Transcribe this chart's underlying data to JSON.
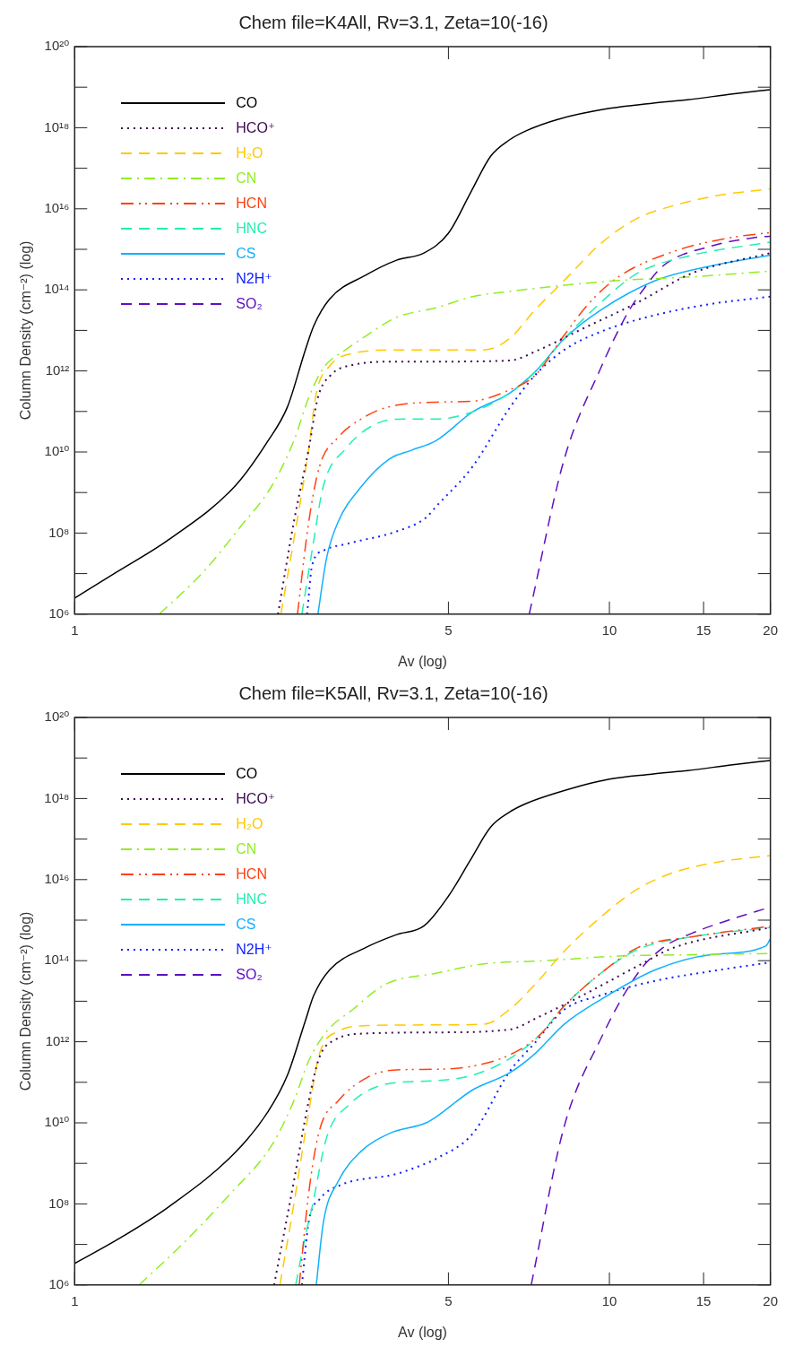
{
  "chart_data": [
    {
      "type": "line",
      "title": "Chem file=K4All, Rv=3.1, Zeta=10(-16)",
      "xlabel": "Av (log)",
      "ylabel": "Column Density (cm⁻²) (log)",
      "log": "xy",
      "legend": "top left",
      "xlim": [
        1,
        20
      ],
      "xticks": [
        1,
        5,
        10,
        15,
        20
      ],
      "ylim": [
        1000000.0,
        1e+20
      ],
      "yticks": [
        {
          "value": 1000000.0,
          "label": "10⁶"
        },
        {
          "value": 10000000.0,
          "label": null
        },
        {
          "value": 100000000.0,
          "label": "10⁸"
        },
        {
          "value": 1000000000.0,
          "label": null
        },
        {
          "value": 10000000000.0,
          "label": "10¹⁰"
        },
        {
          "value": 100000000000.0,
          "label": null
        },
        {
          "value": 1000000000000.0,
          "label": "10¹²"
        },
        {
          "value": 10000000000000.0,
          "label": null
        },
        {
          "value": 100000000000000.0,
          "label": "10¹⁴"
        },
        {
          "value": 1000000000000000.0,
          "label": null
        },
        {
          "value": 1e+16,
          "label": "10¹⁶"
        },
        {
          "value": 1e+17,
          "label": null
        },
        {
          "value": 1e+18,
          "label": "10¹⁸"
        },
        {
          "value": 1e+19,
          "label": null
        },
        {
          "value": 1e+20,
          "label": "10²⁰"
        }
      ],
      "series": [
        {
          "name": "CO",
          "color": "#000000",
          "line_style": "solid",
          "x": [
            1,
            1.2,
            1.5,
            2,
            2.3,
            2.5,
            2.7,
            2.8,
            3,
            3.5,
            4,
            4.5,
            5,
            5.5,
            6,
            6.5,
            7,
            8,
            10,
            12,
            14,
            17,
            20
          ],
          "values": [
            2500000.0,
            11000000.0,
            69000000.0,
            1500000000.0,
            19000000000.0,
            130000000000.0,
            3300000000000.0,
            13000000000000.0,
            60000000000000.0,
            230000000000000.0,
            540000000000000.0,
            810000000000000.0,
            2500000000000000.0,
            2.5e+16,
            2e+17,
            5e+17,
            8.5e+17,
            1.6e+18,
            3e+18,
            4e+18,
            4.9e+18,
            6.8e+18,
            8.7e+18
          ]
        },
        {
          "name": "HCO⁺",
          "color": "#3c0a50",
          "line_style": "dotted",
          "x": [
            2.4,
            2.57,
            2.74,
            2.85,
            3.01,
            3.31,
            4.0,
            4.74,
            6.5,
            7.38,
            8.91,
            11.3,
            14.3,
            20
          ],
          "values": [
            1000000.0,
            190000000.0,
            12000000000.0,
            220000000000.0,
            780000000000.0,
            1400000000000.0,
            1700000000000.0,
            1700000000000.0,
            1800000000000.0,
            3300000000000.0,
            11000000000000.0,
            49000000000000.0,
            260000000000000.0,
            810000000000000.0
          ]
        },
        {
          "name": "H₂O",
          "color": "#ffc800",
          "line_style": "dashed",
          "x": [
            2.43,
            2.57,
            2.74,
            2.83,
            3.01,
            3.31,
            4.0,
            4.74,
            5.82,
            6.5,
            7.26,
            8.23,
            9.64,
            11.3,
            13.2,
            16.2,
            20
          ],
          "values": [
            1000000.0,
            69000000.0,
            12000000000.0,
            280000000000.0,
            1400000000000.0,
            2700000000000.0,
            3300000000000.0,
            3300000000000.0,
            3300000000000.0,
            6200000000000.0,
            32000000000000.0,
            170000000000000.0,
            1400000000000000.0,
            5900000000000000.0,
            1.2e+16,
            2.2e+16,
            3.1e+16
          ]
        },
        {
          "name": "CN",
          "color": "#90ee20",
          "line_style": "dashdot",
          "x": [
            1.44,
            1.74,
            2.03,
            2.34,
            2.57,
            2.74,
            2.92,
            3.21,
            3.52,
            4.0,
            4.74,
            5.55,
            6.5,
            8.23,
            10.4,
            14.3,
            20
          ],
          "values": [
            1000000.0,
            11000000.0,
            130000000.0,
            1500000000.0,
            19000000000.0,
            220000000000.0,
            1200000000000.0,
            3300000000000.0,
            7600000000000.0,
            21000000000000.0,
            36000000000000.0,
            68000000000000.0,
            91000000000000.0,
            130000000000000.0,
            170000000000000.0,
            210000000000000.0,
            290000000000000.0
          ]
        },
        {
          "name": "HCN",
          "color": "#ff4010",
          "line_style": "dashdotdot",
          "x": [
            2.61,
            2.74,
            2.87,
            3.11,
            3.52,
            3.87,
            4.74,
            5.55,
            6.5,
            7.26,
            8.23,
            9.19,
            10.4,
            13.2,
            16.7,
            20
          ],
          "values": [
            1000000.0,
            190000000.0,
            4400000000.0,
            23000000000.0,
            79000000000.0,
            130000000000.0,
            170000000000.0,
            180000000000.0,
            340000000000.0,
            780000000000.0,
            7600000000000.0,
            49000000000000.0,
            210000000000000.0,
            890000000000000.0,
            1900000000000000.0,
            2600000000000000.0
          ]
        },
        {
          "name": "HNC",
          "color": "#20f0b0",
          "line_style": "dashed",
          "x": [
            2.66,
            2.78,
            2.92,
            3.21,
            3.64,
            4.13,
            4.74,
            5.55,
            6.5,
            7.26,
            8.23,
            9.64,
            11.3,
            14.3,
            20
          ],
          "values": [
            1000000.0,
            37000000.0,
            1500000000.0,
            12000000000.0,
            48000000000.0,
            65000000000.0,
            65000000000.0,
            98000000000.0,
            280000000000.0,
            950000000000.0,
            6200000000000.0,
            49000000000000.0,
            260000000000000.0,
            720000000000000.0,
            1500000000000000.0
          ]
        },
        {
          "name": "CS",
          "color": "#10b0ff",
          "line_style": "solid",
          "x": [
            2.85,
            2.96,
            3.11,
            3.42,
            3.87,
            4.26,
            4.74,
            5.55,
            6.5,
            7.26,
            8.23,
            9.64,
            12.2,
            15.5,
            20
          ],
          "values": [
            1000000.0,
            25000000.0,
            190000000.0,
            1300000000.0,
            6600000000.0,
            11000000000.0,
            19000000000.0,
            98000000000.0,
            280000000000.0,
            950000000000.0,
            6200000000000.0,
            32000000000000.0,
            170000000000000.0,
            390000000000000.0,
            720000000000000.0
          ]
        },
        {
          "name": "N2H⁺",
          "color": "#1020ff",
          "line_style": "dotted",
          "x": [
            2.72,
            2.78,
            2.92,
            3.26,
            4.0,
            4.54,
            4.74,
            5.55,
            6.5,
            7.26,
            8.23,
            9.64,
            12.2,
            15.5,
            20
          ],
          "values": [
            1000000.0,
            16000000.0,
            37000000.0,
            56000000.0,
            110000000.0,
            240000000.0,
            450000000.0,
            4400000000.0,
            120000000000.0,
            780000000000.0,
            3300000000000.0,
            9300000000000.0,
            24000000000000.0,
            45000000000000.0,
            68000000000000.0
          ]
        },
        {
          "name": "SO₂",
          "color": "#6010c0",
          "line_style": "dashed",
          "x": [
            7.08,
            8.23,
            9.64,
            10.8,
            11.5,
            12.6,
            15.5,
            19.0,
            20
          ],
          "values": [
            1000000.0,
            6600000000.0,
            1200000000000.0,
            26000000000000.0,
            91000000000000.0,
            390000000000000.0,
            1200000000000000.0,
            2000000000000000.0,
            2100000000000000.0
          ]
        }
      ]
    },
    {
      "type": "line",
      "title": "Chem file=K5All, Rv=3.1, Zeta=10(-16)",
      "xlabel": "Av (log)",
      "ylabel": "Column Density (cm⁻²) (log)",
      "log": "xy",
      "legend": "top left",
      "xlim": [
        1,
        20
      ],
      "xticks": [
        1,
        5,
        10,
        15,
        20
      ],
      "ylim": [
        1000000.0,
        1e+20
      ],
      "yticks": [
        {
          "value": 1000000.0,
          "label": "10⁶"
        },
        {
          "value": 10000000.0,
          "label": null
        },
        {
          "value": 100000000.0,
          "label": "10⁸"
        },
        {
          "value": 1000000000.0,
          "label": null
        },
        {
          "value": 10000000000.0,
          "label": "10¹⁰"
        },
        {
          "value": 100000000000.0,
          "label": null
        },
        {
          "value": 1000000000000.0,
          "label": "10¹²"
        },
        {
          "value": 10000000000000.0,
          "label": null
        },
        {
          "value": 100000000000000.0,
          "label": "10¹⁴"
        },
        {
          "value": 1000000000000000.0,
          "label": null
        },
        {
          "value": 1e+16,
          "label": "10¹⁶"
        },
        {
          "value": 1e+17,
          "label": null
        },
        {
          "value": 1e+18,
          "label": "10¹⁸"
        },
        {
          "value": 1e+19,
          "label": null
        },
        {
          "value": 1e+20,
          "label": "10²⁰"
        }
      ],
      "series": [
        {
          "name": "CO",
          "color": "#000000",
          "line_style": "solid",
          "x": [
            1,
            1.2,
            1.5,
            2,
            2.3,
            2.5,
            2.7,
            2.8,
            3,
            3.5,
            4,
            4.5,
            5,
            5.5,
            6,
            6.5,
            7,
            8,
            10,
            12,
            14,
            17,
            20
          ],
          "values": [
            3400000.0,
            13000000.0,
            85000000.0,
            1900000000.0,
            19000000000.0,
            150000000000.0,
            3300000000000.0,
            14000000000000.0,
            60000000000000.0,
            210000000000000.0,
            440000000000000.0,
            720000000000000.0,
            3900000000000000.0,
            3.1e+16,
            2e+17,
            4.6e+17,
            7.6e+17,
            1.4e+18,
            3e+18,
            4e+18,
            4.9e+18,
            6.8e+18,
            8.7e+18
          ]
        },
        {
          "name": "HCO⁺",
          "color": "#3c0a50",
          "line_style": "dotted",
          "x": [
            2.36,
            2.57,
            2.74,
            2.87,
            3.06,
            3.52,
            4.74,
            6.5,
            7.38,
            8.91,
            11.3,
            13.2,
            20
          ],
          "values": [
            1000000.0,
            360000000.0,
            35000000000.0,
            420000000000.0,
            1100000000000.0,
            1600000000000.0,
            1700000000000.0,
            2000000000000.0,
            4100000000000.0,
            14000000000000.0,
            74000000000000.0,
            210000000000000.0,
            660000000000000.0
          ]
        },
        {
          "name": "H₂O",
          "color": "#ffc800",
          "line_style": "dashed",
          "x": [
            2.42,
            2.57,
            2.74,
            2.87,
            3.11,
            3.52,
            4.74,
            5.82,
            6.5,
            7.26,
            8.23,
            9.64,
            11.3,
            13.2,
            16.2,
            20
          ],
          "values": [
            1000000.0,
            100000000.0,
            19000000000.0,
            510000000000.0,
            1800000000000.0,
            2500000000000.0,
            2600000000000.0,
            2700000000000.0,
            6200000000000.0,
            26000000000000.0,
            170000000000000.0,
            1200000000000000.0,
            5900000000000000.0,
            1.5e+16,
            2.8e+16,
            3.9e+16
          ]
        },
        {
          "name": "CN",
          "color": "#90ee20",
          "line_style": "dashdot",
          "x": [
            1.32,
            1.6,
            1.94,
            2.34,
            2.57,
            2.74,
            2.96,
            3.31,
            3.81,
            4.74,
            5.82,
            7.6,
            10.4,
            14.3,
            20
          ],
          "values": [
            1000000.0,
            11000000.0,
            160000000.0,
            2900000000.0,
            35000000000.0,
            340000000000.0,
            1800000000000.0,
            6200000000000.0,
            26000000000000.0,
            49000000000000.0,
            83000000000000.0,
            100000000000000.0,
            130000000000000.0,
            140000000000000.0,
            150000000000000.0
          ]
        },
        {
          "name": "HCN",
          "color": "#ff4010",
          "line_style": "dashdotdot",
          "x": [
            2.63,
            2.74,
            2.87,
            3.11,
            3.52,
            3.94,
            4.74,
            5.55,
            6.5,
            7.38,
            8.23,
            9.64,
            11.3,
            14.3,
            20
          ],
          "values": [
            1000000.0,
            190000000.0,
            6600000000.0,
            35000000000.0,
            130000000000.0,
            200000000000.0,
            210000000000.0,
            250000000000.0,
            470000000000.0,
            1400000000000.0,
            7600000000000.0,
            49000000000000.0,
            210000000000000.0,
            390000000000000.0,
            710000000000000.0
          ]
        },
        {
          "name": "HNC",
          "color": "#20f0b0",
          "line_style": "dashed",
          "x": [
            2.59,
            2.7,
            2.78,
            2.96,
            3.26,
            3.81,
            4.74,
            5.55,
            6.5,
            7.38,
            8.23,
            9.64,
            11.3,
            14.3,
            20
          ],
          "values": [
            1000000.0,
            16000000.0,
            85000000.0,
            4400000000.0,
            28000000000.0,
            89000000000.0,
            110000000000.0,
            150000000000.0,
            380000000000.0,
            1400000000000.0,
            7600000000000.0,
            49000000000000.0,
            190000000000000.0,
            390000000000000.0,
            660000000000000.0
          ]
        },
        {
          "name": "CS",
          "color": "#10b0ff",
          "line_style": "solid",
          "x": [
            2.83,
            2.92,
            3.11,
            3.42,
            3.87,
            4.54,
            4.74,
            5.55,
            6.5,
            7.26,
            8.23,
            9.64,
            12.2,
            15.5,
            19.6,
            20
          ],
          "values": [
            1000000.0,
            37000000.0,
            360000000.0,
            1900000000.0,
            5400000000.0,
            10000000000.0,
            14000000000.0,
            65000000000.0,
            170000000000.0,
            510000000000.0,
            2700000000000.0,
            11000000000000.0,
            60000000000000.0,
            140000000000000.0,
            230000000000000.0,
            350000000000000.0
          ]
        },
        {
          "name": "N2H⁺",
          "color": "#1020ff",
          "line_style": "dotted",
          "x": [
            2.66,
            2.74,
            2.87,
            3.16,
            4.0,
            4.54,
            4.74,
            5.55,
            6.5,
            7.26,
            8.23,
            9.64,
            12.2,
            15.5,
            20
          ],
          "values": [
            1000000.0,
            37000000.0,
            130000000.0,
            300000000.0,
            550000000.0,
            1000000000.0,
            1300000000.0,
            5400000000.0,
            180000000000.0,
            950000000000.0,
            6200000000000.0,
            14000000000000.0,
            32000000000000.0,
            55000000000000.0,
            91000000000000.0
          ]
        },
        {
          "name": "SO₂",
          "color": "#6010c0",
          "line_style": "dashed",
          "x": [
            7.14,
            8.23,
            9.64,
            11.3,
            12.6,
            14.3,
            16.7,
            20
          ],
          "values": [
            1000000.0,
            8100000000.0,
            1200000000000.0,
            49000000000000.0,
            210000000000000.0,
            480000000000000.0,
            1000000000000000.0,
            2100000000000000.0
          ]
        }
      ]
    }
  ]
}
